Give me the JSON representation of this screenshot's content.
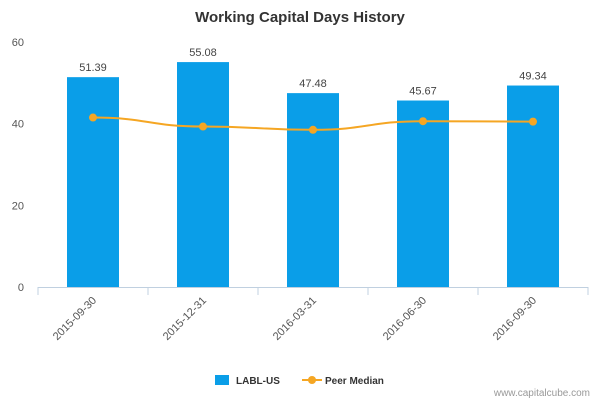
{
  "chart_data": {
    "type": "bar",
    "title": "Working Capital Days History",
    "categories": [
      "2015-09-30",
      "2015-12-31",
      "2016-03-31",
      "2016-06-30",
      "2016-09-30"
    ],
    "series": [
      {
        "name": "LABL-US",
        "kind": "bar",
        "color": "#0a9ee8",
        "values": [
          51.39,
          55.08,
          47.48,
          45.67,
          49.34
        ],
        "labels": [
          "51.39",
          "55.08",
          "47.48",
          "45.67",
          "49.34"
        ]
      },
      {
        "name": "Peer Median",
        "kind": "line",
        "color": "#f5a623",
        "values": [
          41.5,
          39.3,
          38.5,
          40.6,
          40.5
        ]
      }
    ],
    "ylim": [
      0,
      60
    ],
    "yticks": [
      "0",
      "20",
      "40",
      "60"
    ],
    "ytick_values": [
      0,
      20,
      40,
      60
    ],
    "grid": false,
    "legend": "bottom-center",
    "credit": "www.capitalcube.com"
  }
}
